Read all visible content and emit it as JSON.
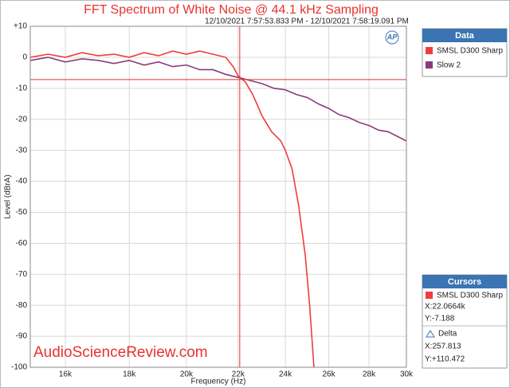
{
  "chart_data": {
    "type": "line",
    "title": "FFT Spectrum of White Noise @ 44.1 kHz Sampling",
    "subtitle": "12/10/2021 7:57:53.833 PM - 12/10/2021 7:58:19.091 PM",
    "xlabel": "Frequency (Hz)",
    "ylabel": "Level (dBrA)",
    "watermark": "AudioScienceReview.com",
    "logo": "AP",
    "xscale": "log",
    "grid": true,
    "xlim": [
      15000,
      30000
    ],
    "xticks": [
      {
        "value": 16000,
        "label": "16k"
      },
      {
        "value": 18000,
        "label": "18k"
      },
      {
        "value": 20000,
        "label": "20k"
      },
      {
        "value": 22000,
        "label": "22k"
      },
      {
        "value": 24000,
        "label": "24k"
      },
      {
        "value": 26000,
        "label": "26k"
      },
      {
        "value": 28000,
        "label": "28k"
      },
      {
        "value": 30000,
        "label": "30k"
      }
    ],
    "ylim": [
      -100,
      10
    ],
    "yticks": [
      {
        "value": 10,
        "label": "+10"
      },
      0,
      -10,
      -20,
      -30,
      -40,
      -50,
      -60,
      -70,
      -80,
      -90,
      -100
    ],
    "legend_title": "Data",
    "series": [
      {
        "name": "SMSL D300 Sharp",
        "color": "#f03c3c",
        "x": [
          15000,
          15500,
          16000,
          16500,
          17000,
          17500,
          18000,
          18500,
          19000,
          19500,
          20000,
          20500,
          21000,
          21500,
          21800,
          22000,
          22300,
          22600,
          23000,
          23400,
          23800,
          24000,
          24300,
          24600,
          24900,
          25100,
          25300
        ],
        "values": [
          0,
          1,
          0,
          1.5,
          0.5,
          1,
          0,
          1.5,
          0.5,
          2,
          1,
          2,
          1,
          0,
          -3,
          -6,
          -8,
          -12,
          -19,
          -24,
          -27,
          -30,
          -36,
          -48,
          -64,
          -80,
          -100
        ]
      },
      {
        "name": "Slow 2",
        "color": "#8b3a7c",
        "x": [
          15000,
          15500,
          16000,
          16500,
          17000,
          17500,
          18000,
          18500,
          19000,
          19500,
          20000,
          20500,
          21000,
          21500,
          22000,
          22500,
          23000,
          23500,
          24000,
          24500,
          25000,
          25500,
          26000,
          26500,
          27000,
          27500,
          28000,
          28500,
          29000,
          29500,
          30000
        ],
        "values": [
          -1,
          0,
          -1.5,
          -0.5,
          -1,
          -2,
          -1,
          -2.5,
          -1.5,
          -3,
          -2.5,
          -4,
          -4,
          -5.5,
          -6.5,
          -7.5,
          -8.5,
          -10,
          -10.5,
          -12,
          -13,
          -15,
          -16.5,
          -18.5,
          -19.5,
          -21,
          -22,
          -23.5,
          -24,
          -25.5,
          -27
        ]
      }
    ],
    "cursor": {
      "x": 22066.4,
      "y": -7.188
    },
    "cursor_panel": {
      "title": "Cursors",
      "x_readout": "X:22.0664k",
      "y_readout": "Y:-7.188",
      "delta_title": "Delta",
      "delta_x": "X:257.813",
      "delta_y": "Y:+110.472"
    }
  }
}
